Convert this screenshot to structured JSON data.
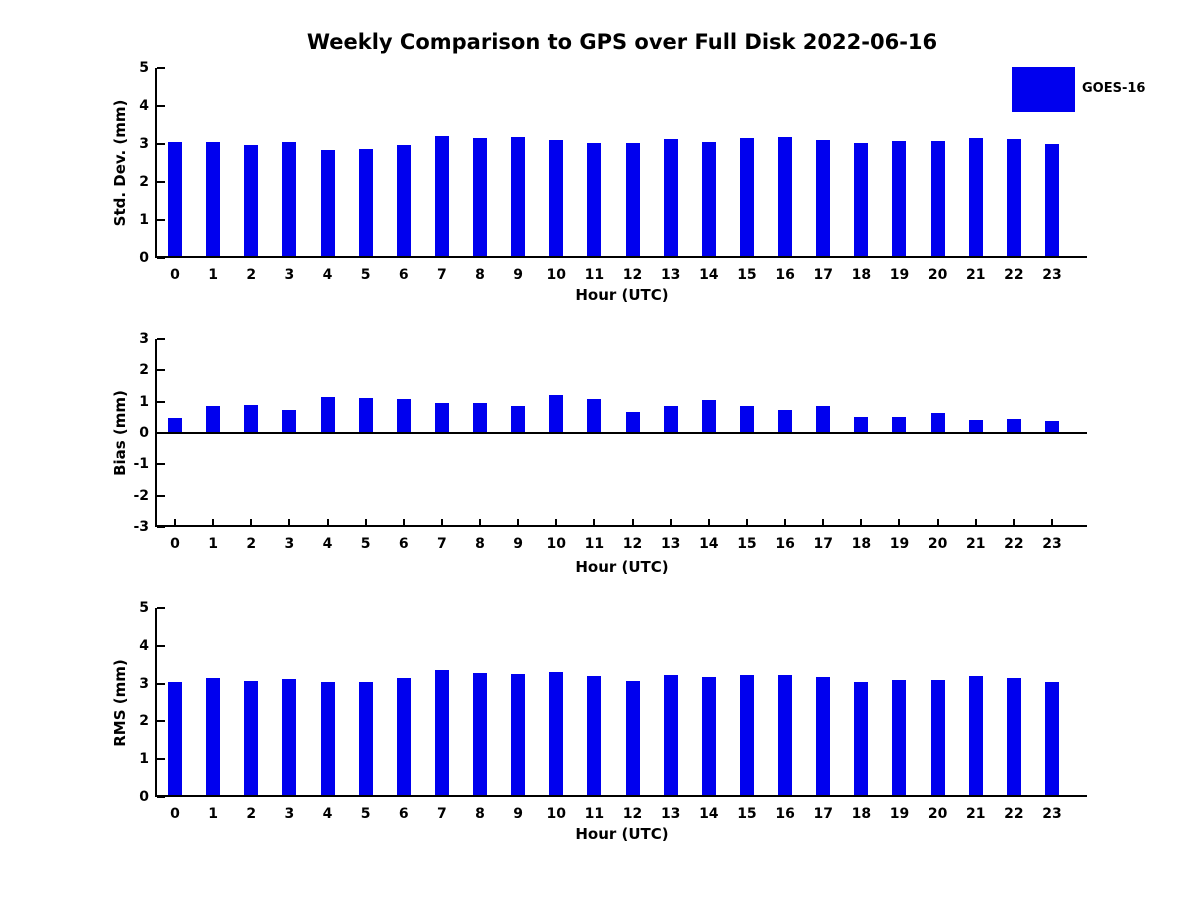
{
  "title": "Weekly Comparison to GPS over Full Disk 2022-06-16",
  "legend": {
    "label": "GOES-16",
    "color": "#0000ee",
    "position": "top-right"
  },
  "bar_color": "#0000ee",
  "chart_data": [
    {
      "type": "bar",
      "series_name": "GOES-16",
      "ylabel": "Std. Dev. (mm)",
      "xlabel": "Hour (UTC)",
      "ylim": [
        0,
        5
      ],
      "yticks": [
        0,
        1,
        2,
        3,
        4,
        5
      ],
      "grid": false,
      "categories": [
        "0",
        "1",
        "2",
        "3",
        "4",
        "5",
        "6",
        "7",
        "8",
        "9",
        "10",
        "11",
        "12",
        "13",
        "14",
        "15",
        "16",
        "17",
        "18",
        "19",
        "20",
        "21",
        "22",
        "23"
      ],
      "values": [
        3.05,
        3.05,
        2.97,
        3.05,
        2.84,
        2.88,
        2.97,
        3.22,
        3.15,
        3.18,
        3.1,
        3.02,
        3.02,
        3.13,
        3.05,
        3.15,
        3.18,
        3.1,
        3.02,
        3.09,
        3.07,
        3.17,
        3.12,
        3.01
      ]
    },
    {
      "type": "bar",
      "series_name": "GOES-16",
      "ylabel": "Bias (mm)",
      "xlabel": "Hour (UTC)",
      "ylim": [
        -3,
        3
      ],
      "yticks": [
        -3,
        -2,
        -1,
        0,
        1,
        2,
        3
      ],
      "grid": false,
      "categories": [
        "0",
        "1",
        "2",
        "3",
        "4",
        "5",
        "6",
        "7",
        "8",
        "9",
        "10",
        "11",
        "12",
        "13",
        "14",
        "15",
        "16",
        "17",
        "18",
        "19",
        "20",
        "21",
        "22",
        "23"
      ],
      "values": [
        0.47,
        0.87,
        0.9,
        0.74,
        1.16,
        1.11,
        1.1,
        0.95,
        0.95,
        0.87,
        1.2,
        1.1,
        0.68,
        0.86,
        1.05,
        0.86,
        0.75,
        0.85,
        0.52,
        0.5,
        0.64,
        0.41,
        0.44,
        0.37
      ]
    },
    {
      "type": "bar",
      "series_name": "GOES-16",
      "ylabel": "RMS (mm)",
      "xlabel": "Hour (UTC)",
      "ylim": [
        0,
        5
      ],
      "yticks": [
        0,
        1,
        2,
        3,
        4,
        5
      ],
      "grid": false,
      "categories": [
        "0",
        "1",
        "2",
        "3",
        "4",
        "5",
        "6",
        "7",
        "8",
        "9",
        "10",
        "11",
        "12",
        "13",
        "14",
        "15",
        "16",
        "17",
        "18",
        "19",
        "20",
        "21",
        "22",
        "23"
      ],
      "values": [
        3.05,
        3.15,
        3.07,
        3.12,
        3.04,
        3.04,
        3.15,
        3.35,
        3.27,
        3.25,
        3.3,
        3.2,
        3.07,
        3.22,
        3.17,
        3.24,
        3.24,
        3.17,
        3.04,
        3.1,
        3.1,
        3.2,
        3.14,
        3.04
      ]
    }
  ]
}
